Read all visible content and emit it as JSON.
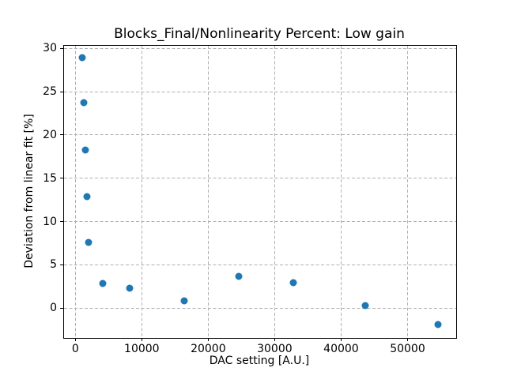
{
  "chart_data": {
    "type": "scatter",
    "title": "Blocks_Final/Nonlinearity Percent: Low gain",
    "xlabel": "DAC setting [A.U.]",
    "ylabel": "Deviation from linear fit [%]",
    "xlim": [
      -1700,
      57320
    ],
    "ylim": [
      -3.45,
      30.3
    ],
    "xticks": [
      0,
      10000,
      20000,
      30000,
      40000,
      50000
    ],
    "yticks": [
      0,
      5,
      10,
      15,
      20,
      25,
      30
    ],
    "grid": true,
    "grid_style": "dashed",
    "grid_color": "#b0b0b0",
    "marker_color": "#1f77b4",
    "points": [
      {
        "x": 1024,
        "y": 28.9
      },
      {
        "x": 1280,
        "y": 23.7
      },
      {
        "x": 1536,
        "y": 18.3
      },
      {
        "x": 1792,
        "y": 12.9
      },
      {
        "x": 2048,
        "y": 7.6
      },
      {
        "x": 4096,
        "y": 2.8
      },
      {
        "x": 8192,
        "y": 2.3
      },
      {
        "x": 16384,
        "y": 0.8
      },
      {
        "x": 24576,
        "y": 3.7
      },
      {
        "x": 32768,
        "y": 2.9
      },
      {
        "x": 43690,
        "y": 0.3
      },
      {
        "x": 54613,
        "y": -1.9
      }
    ]
  }
}
